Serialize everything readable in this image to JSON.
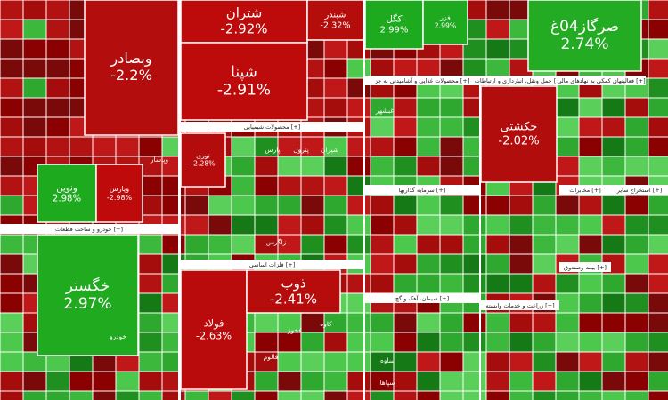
{
  "chart_data": {
    "type": "treemap",
    "categories": [
      "وبصادر",
      "شتران",
      "شپنا",
      "شبندر",
      "کگل",
      "فزر",
      "صرگاز04غ",
      "حکشتی",
      "خگستر",
      "فولاد",
      "ذوب",
      "ونوین",
      "وپارس",
      "نوری"
    ],
    "values": [
      -2.2,
      -2.92,
      -2.91,
      -2.32,
      2.99,
      2.99,
      2.74,
      -2.02,
      2.97,
      -2.63,
      -2.41,
      2.98,
      -2.98,
      -2.28
    ],
    "value_labels": [
      "-2.2%",
      "-2.92%",
      "-2.91%",
      "-2.32%",
      "2.99%",
      "2.99%",
      "2.74%",
      "-2.02%",
      "2.97%",
      "-2.63%",
      "-2.41%",
      "2.98%",
      "-2.98%",
      "-2.28%"
    ],
    "sectors": [
      "محصولات شیمیایی [+]",
      "خودرو و ساخت قطعات [+]",
      "فلزات اساسی [+]",
      "سرمایه گذاریها [+]",
      "سیمان، آهک و گچ [+]",
      "محصولات غذایی و آشامیدنی به جز [+]",
      "حمل ونقل، انبارداری و ارتباطات [+]",
      "فعالیتهای کمکی به نهادهای مالی [+]",
      "مخابرات [+]",
      "استخراج سایر [+]",
      "زراعت و خدمات وابسته [+]",
      "بیمه وصندوق [+]"
    ],
    "labels": [
      "پارس",
      "پترول",
      "شیران",
      "زاگرس",
      "کاوه",
      "فخوز",
      "فالوم",
      "خودرو",
      "ساوه",
      "سپاها",
      "غبشهر",
      "وپاسار"
    ]
  }
}
